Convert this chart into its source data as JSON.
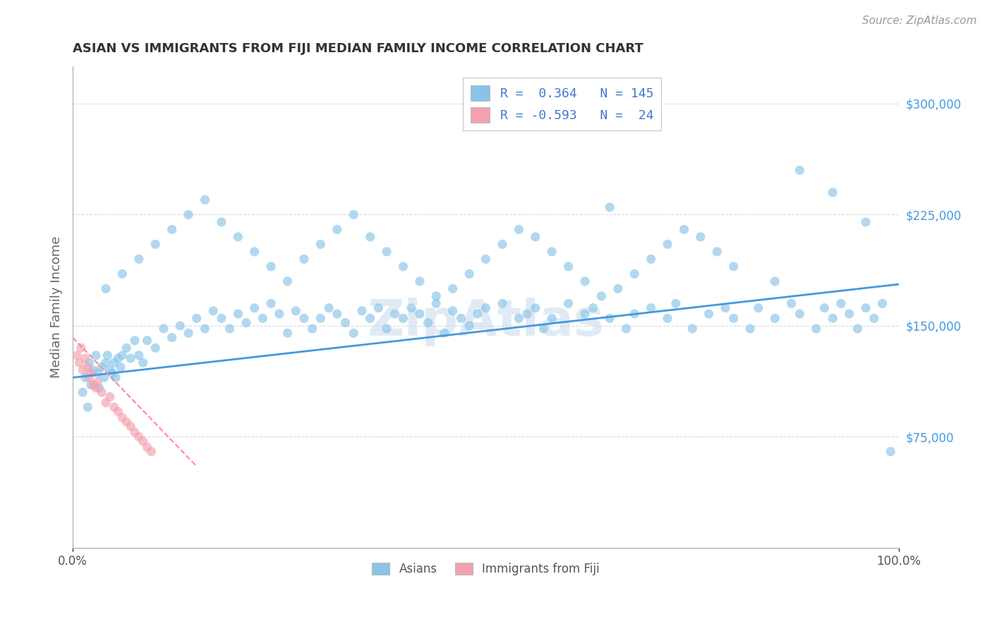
{
  "title": "ASIAN VS IMMIGRANTS FROM FIJI MEDIAN FAMILY INCOME CORRELATION CHART",
  "source_text": "Source: ZipAtlas.com",
  "ylabel": "Median Family Income",
  "xlim": [
    0,
    100
  ],
  "ylim": [
    0,
    325000
  ],
  "yticks": [
    0,
    75000,
    150000,
    225000,
    300000
  ],
  "ytick_labels": [
    "",
    "$75,000",
    "$150,000",
    "$225,000",
    "$300,000"
  ],
  "xtick_labels": [
    "0.0%",
    "100.0%"
  ],
  "legend_r1": "R =  0.364",
  "legend_n1": "N = 145",
  "legend_r2": "R = -0.593",
  "legend_n2": "N =  24",
  "color_asian": "#89c4e8",
  "color_fiji": "#f4a0b0",
  "color_asian_line": "#4499dd",
  "color_fiji_line": "#ff8899",
  "color_grid": "#cccccc",
  "color_title": "#333333",
  "color_legend_text": "#4477cc",
  "watermark_text": "ZipAtlas",
  "watermark_color": "#ccddee",
  "asian_x": [
    1.2,
    1.5,
    1.8,
    2.0,
    2.2,
    2.5,
    2.8,
    3.0,
    3.2,
    3.5,
    3.8,
    4.0,
    4.2,
    4.5,
    4.8,
    5.0,
    5.2,
    5.5,
    5.8,
    6.0,
    6.5,
    7.0,
    7.5,
    8.0,
    8.5,
    9.0,
    10.0,
    11.0,
    12.0,
    13.0,
    14.0,
    15.0,
    16.0,
    17.0,
    18.0,
    19.0,
    20.0,
    21.0,
    22.0,
    23.0,
    24.0,
    25.0,
    26.0,
    27.0,
    28.0,
    29.0,
    30.0,
    31.0,
    32.0,
    33.0,
    34.0,
    35.0,
    36.0,
    37.0,
    38.0,
    39.0,
    40.0,
    41.0,
    42.0,
    43.0,
    44.0,
    45.0,
    46.0,
    47.0,
    48.0,
    49.0,
    50.0,
    52.0,
    54.0,
    55.0,
    56.0,
    57.0,
    58.0,
    60.0,
    62.0,
    63.0,
    65.0,
    67.0,
    68.0,
    70.0,
    72.0,
    73.0,
    75.0,
    77.0,
    79.0,
    80.0,
    82.0,
    83.0,
    85.0,
    87.0,
    88.0,
    90.0,
    91.0,
    92.0,
    93.0,
    94.0,
    95.0,
    96.0,
    97.0,
    98.0,
    4.0,
    6.0,
    8.0,
    10.0,
    12.0,
    14.0,
    16.0,
    18.0,
    20.0,
    22.0,
    24.0,
    26.0,
    28.0,
    30.0,
    32.0,
    34.0,
    36.0,
    38.0,
    40.0,
    42.0,
    44.0,
    46.0,
    48.0,
    50.0,
    52.0,
    54.0,
    56.0,
    58.0,
    60.0,
    62.0,
    64.0,
    66.0,
    68.0,
    70.0,
    72.0,
    74.0,
    76.0,
    78.0,
    80.0,
    85.0,
    88.0,
    92.0,
    96.0,
    99.0,
    65.0
  ],
  "asian_y": [
    105000,
    115000,
    95000,
    125000,
    110000,
    120000,
    130000,
    118000,
    108000,
    122000,
    115000,
    125000,
    130000,
    120000,
    118000,
    125000,
    115000,
    128000,
    122000,
    130000,
    135000,
    128000,
    140000,
    130000,
    125000,
    140000,
    135000,
    148000,
    142000,
    150000,
    145000,
    155000,
    148000,
    160000,
    155000,
    148000,
    158000,
    152000,
    162000,
    155000,
    165000,
    158000,
    145000,
    160000,
    155000,
    148000,
    155000,
    162000,
    158000,
    152000,
    145000,
    160000,
    155000,
    162000,
    148000,
    158000,
    155000,
    162000,
    158000,
    152000,
    165000,
    145000,
    160000,
    155000,
    150000,
    158000,
    162000,
    165000,
    155000,
    158000,
    162000,
    148000,
    155000,
    165000,
    158000,
    162000,
    155000,
    148000,
    158000,
    162000,
    155000,
    165000,
    148000,
    158000,
    162000,
    155000,
    148000,
    162000,
    155000,
    165000,
    158000,
    148000,
    162000,
    155000,
    165000,
    158000,
    148000,
    162000,
    155000,
    165000,
    175000,
    185000,
    195000,
    205000,
    215000,
    225000,
    235000,
    220000,
    210000,
    200000,
    190000,
    180000,
    195000,
    205000,
    215000,
    225000,
    210000,
    200000,
    190000,
    180000,
    170000,
    175000,
    185000,
    195000,
    205000,
    215000,
    210000,
    200000,
    190000,
    180000,
    170000,
    175000,
    185000,
    195000,
    205000,
    215000,
    210000,
    200000,
    190000,
    180000,
    255000,
    240000,
    220000,
    65000,
    230000
  ],
  "fiji_x": [
    0.5,
    0.8,
    1.0,
    1.2,
    1.5,
    1.8,
    2.0,
    2.2,
    2.5,
    2.8,
    3.0,
    3.5,
    4.0,
    4.5,
    5.0,
    5.5,
    6.0,
    6.5,
    7.0,
    7.5,
    8.0,
    8.5,
    9.0,
    9.5
  ],
  "fiji_y": [
    130000,
    125000,
    135000,
    120000,
    128000,
    122000,
    115000,
    118000,
    110000,
    108000,
    112000,
    105000,
    98000,
    102000,
    95000,
    92000,
    88000,
    85000,
    82000,
    78000,
    75000,
    72000,
    68000,
    65000
  ],
  "asian_line_x0": 0,
  "asian_line_x1": 100,
  "asian_line_y0": 115000,
  "asian_line_y1": 178000,
  "fiji_line_x0": 0,
  "fiji_line_x1": 15,
  "fiji_line_y0": 142000,
  "fiji_line_y1": 55000
}
